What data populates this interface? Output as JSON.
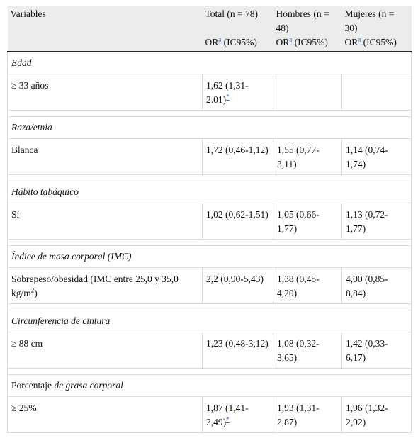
{
  "header": {
    "columns": [
      "Variables",
      "Total (n = 78)",
      "Hombres (n = 48)",
      "Mujeres (n = 30)"
    ],
    "measure": [
      {
        "label": "OR",
        "note": "a",
        "ci": "(IC95%)"
      },
      {
        "label": "OR",
        "note": "a",
        "ci": "(IC95%)"
      },
      {
        "label": "OR",
        "note": "a",
        "ci": "(IC95%)"
      }
    ]
  },
  "sections": [
    {
      "title": "Edad",
      "rows": [
        {
          "label": "≥ 33 años",
          "cells": [
            {
              "text": "1,62 (1,31-2.01)",
              "note": "*"
            },
            null,
            null
          ]
        }
      ]
    },
    {
      "title": "Raza/etnia",
      "rows": [
        {
          "label": "Blanca",
          "cells": [
            {
              "text": "1,72 (0,46-1,12)"
            },
            {
              "text": "1,55 (0,77-3,11)"
            },
            {
              "text": "1,14 (0,74-1,74)"
            }
          ]
        }
      ]
    },
    {
      "title": "Hábito tabáquico",
      "rows": [
        {
          "label": "Sí",
          "cells": [
            {
              "text": "1,02 (0,62-1,51)"
            },
            {
              "text": "1,05 (0,66-1,77)"
            },
            {
              "text": "1,13 (0,72-1,77)"
            }
          ]
        }
      ]
    },
    {
      "title": "Índice de masa corporal (IMC)",
      "rows": [
        {
          "label": "Sobrepeso/obesidad (IMC entre 25,0 y 35,0 kg/m",
          "label_sup": "2",
          "label_end": ")",
          "cells": [
            {
              "text": "2,2 (0,90-5,43)"
            },
            {
              "text": "1,38 (0,45-4,20)"
            },
            {
              "text": "4,00 (0,85-8,84)"
            }
          ]
        }
      ]
    },
    {
      "title": "Circunferencia de cintura",
      "rows": [
        {
          "label": "≥ 88 cm",
          "cells": [
            {
              "text": "1,23 (0,48-3,12)"
            },
            {
              "text": "1,08 (0,32-3,65)"
            },
            {
              "text": "1,42 (0,33-6,17)"
            }
          ]
        }
      ]
    },
    {
      "title_prefix": "Porcentaje",
      "title": "de grasa corporal",
      "rows": [
        {
          "label": "≥ 25%",
          "cells": [
            {
              "text": "1,87 (1,41-2,49)",
              "note": "*"
            },
            {
              "text": "1,93 (1,31-2,87)"
            },
            {
              "text": "1,96 (1,32-2,92)"
            }
          ]
        }
      ]
    }
  ]
}
